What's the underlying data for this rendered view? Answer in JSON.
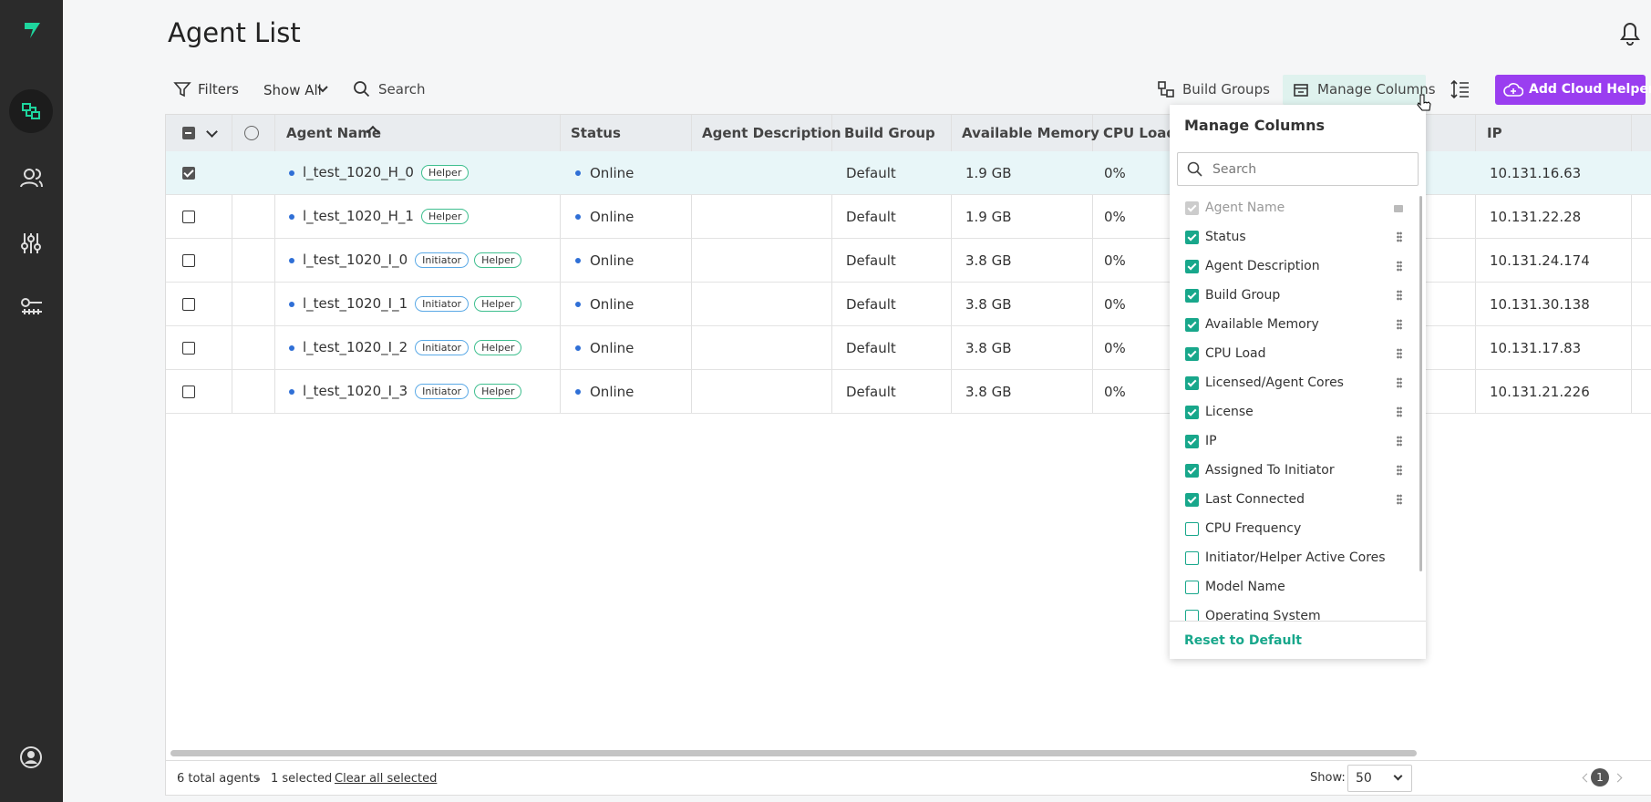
{
  "header": {
    "title": "Agent List"
  },
  "toolbar": {
    "filters": "Filters",
    "show": "Show All",
    "search": "Search",
    "build_groups": "Build Groups",
    "manage_columns": "Manage Columns",
    "add_cloud_helpers": "Add Cloud Helpers"
  },
  "table": {
    "columns": [
      "Agent Name",
      "Status",
      "Agent Description",
      "Build Group",
      "Available Memory",
      "CPU Load",
      "IP"
    ],
    "rows": [
      {
        "selected": true,
        "name": "l_test_1020_H_0",
        "tags": [
          "Helper"
        ],
        "status": "Online",
        "group": "Default",
        "memory": "1.9 GB",
        "cpu": "0%",
        "ip": "10.131.16.63"
      },
      {
        "selected": false,
        "name": "l_test_1020_H_1",
        "tags": [
          "Helper"
        ],
        "status": "Online",
        "group": "Default",
        "memory": "1.9 GB",
        "cpu": "0%",
        "ip": "10.131.22.28"
      },
      {
        "selected": false,
        "name": "l_test_1020_I_0",
        "tags": [
          "Initiator",
          "Helper"
        ],
        "status": "Online",
        "group": "Default",
        "memory": "3.8 GB",
        "cpu": "0%",
        "ip": "10.131.24.174"
      },
      {
        "selected": false,
        "name": "l_test_1020_I_1",
        "tags": [
          "Initiator",
          "Helper"
        ],
        "status": "Online",
        "group": "Default",
        "memory": "3.8 GB",
        "cpu": "0%",
        "ip": "10.131.30.138"
      },
      {
        "selected": false,
        "name": "l_test_1020_I_2",
        "tags": [
          "Initiator",
          "Helper"
        ],
        "status": "Online",
        "group": "Default",
        "memory": "3.8 GB",
        "cpu": "0%",
        "ip": "10.131.17.83"
      },
      {
        "selected": false,
        "name": "l_test_1020_I_3",
        "tags": [
          "Initiator",
          "Helper"
        ],
        "status": "Online",
        "group": "Default",
        "memory": "3.8 GB",
        "cpu": "0%",
        "ip": "10.131.21.226"
      }
    ]
  },
  "column_menu": {
    "title": "Manage Columns",
    "search": "Search",
    "items": [
      {
        "label": "Agent Name",
        "checked": true,
        "locked": true
      },
      {
        "label": "Status",
        "checked": true,
        "locked": false
      },
      {
        "label": "Agent Description",
        "checked": true,
        "locked": false
      },
      {
        "label": "Build Group",
        "checked": true,
        "locked": false
      },
      {
        "label": "Available Memory",
        "checked": true,
        "locked": false
      },
      {
        "label": "CPU Load",
        "checked": true,
        "locked": false
      },
      {
        "label": "Licensed/Agent Cores",
        "checked": true,
        "locked": false
      },
      {
        "label": "License",
        "checked": true,
        "locked": false
      },
      {
        "label": "IP",
        "checked": true,
        "locked": false
      },
      {
        "label": "Assigned To Initiator",
        "checked": true,
        "locked": false
      },
      {
        "label": "Last Connected",
        "checked": true,
        "locked": false
      },
      {
        "label": "CPU Frequency",
        "checked": false,
        "locked": false
      },
      {
        "label": "Initiator/Helper Active Cores",
        "checked": false,
        "locked": false
      },
      {
        "label": "Model Name",
        "checked": false,
        "locked": false
      },
      {
        "label": "Operating System",
        "checked": false,
        "locked": false
      }
    ],
    "reset": "Reset to Default"
  },
  "footer": {
    "total": "6 total agents",
    "selected": "1 selected",
    "clear": "Clear all selected",
    "show_label": "Show:",
    "page_size": "50",
    "page": "1"
  }
}
